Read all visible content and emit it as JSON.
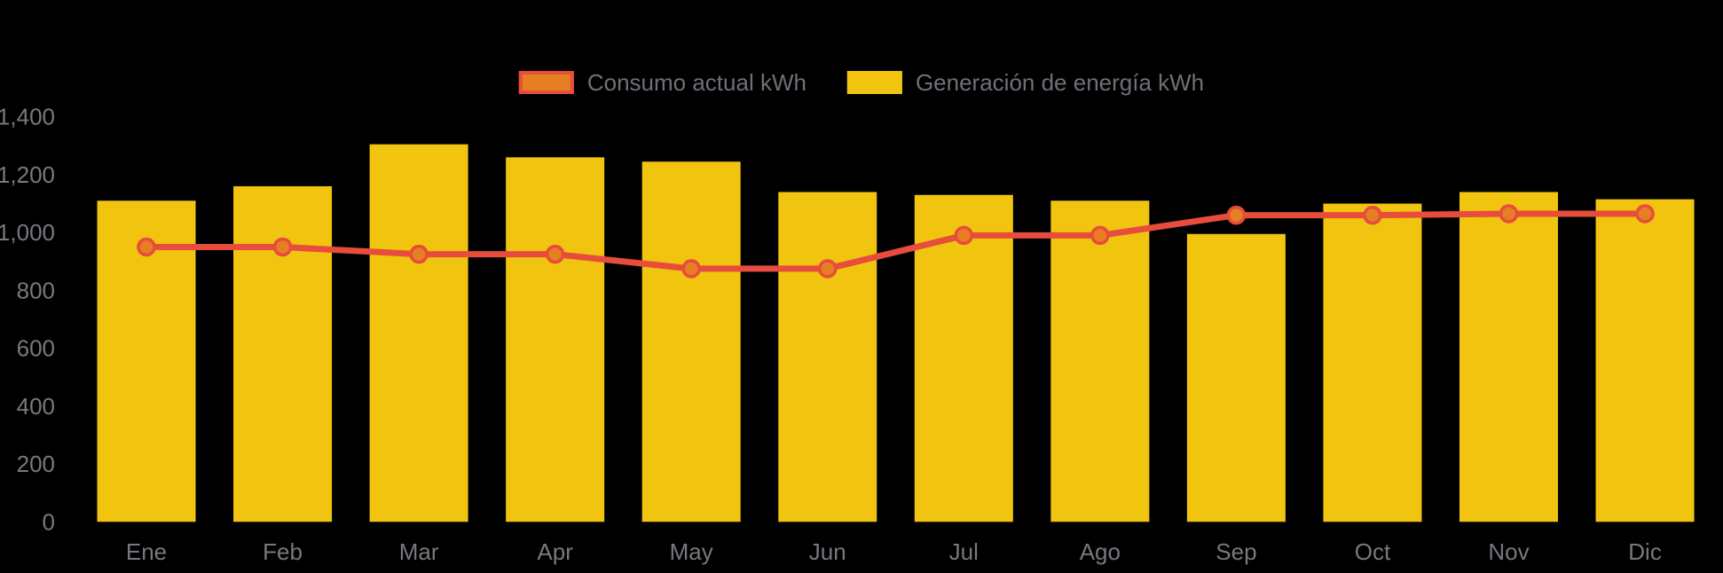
{
  "legend": {
    "items": [
      {
        "label": "Consumo actual kWh",
        "swatch_fill": "#E67E22",
        "swatch_border": "#E74C3C",
        "series_type": "line"
      },
      {
        "label": "Generación de energía kWh",
        "swatch_fill": "#F1C40F",
        "swatch_border": "#F1C40F",
        "series_type": "bar"
      }
    ]
  },
  "chart_data": {
    "type": "combo",
    "categories": [
      "Ene",
      "Feb",
      "Mar",
      "Apr",
      "May",
      "Jun",
      "Jul",
      "Ago",
      "Sep",
      "Oct",
      "Nov",
      "Dic"
    ],
    "series": [
      {
        "name": "Generación de energía kWh",
        "type": "bar",
        "color": "#F1C40F",
        "values": [
          1110,
          1160,
          1305,
          1260,
          1245,
          1140,
          1130,
          1110,
          995,
          1100,
          1140,
          1115
        ]
      },
      {
        "name": "Consumo actual kWh",
        "type": "line",
        "color": "#E74C3C",
        "point_fill": "#E67E22",
        "point_border": "#E74C3C",
        "values": [
          950,
          950,
          925,
          925,
          875,
          875,
          990,
          990,
          1060,
          1060,
          1065,
          1065
        ]
      }
    ],
    "title": "",
    "xlabel": "",
    "ylabel": "",
    "ylim": [
      0,
      1400
    ],
    "ytick_interval": 200,
    "ytick_labels": [
      "0",
      "200",
      "400",
      "600",
      "800",
      "1,000",
      "1,200",
      "1,400"
    ],
    "grid": false,
    "legend_position": "top-center",
    "background_color": "#000000",
    "axis_text_color": "#76797E"
  }
}
